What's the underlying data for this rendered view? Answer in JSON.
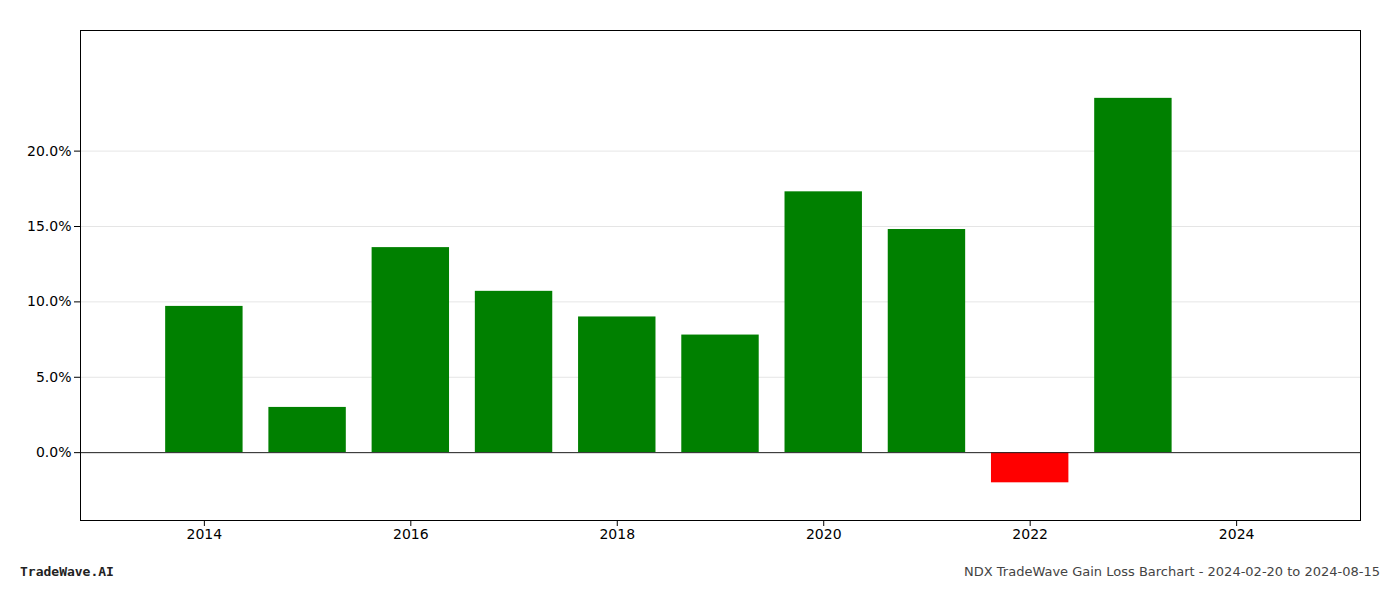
{
  "chart_data": {
    "type": "bar",
    "x": [
      2014,
      2015,
      2016,
      2017,
      2018,
      2019,
      2020,
      2021,
      2022,
      2023
    ],
    "values": [
      0.097,
      0.03,
      0.136,
      0.107,
      0.09,
      0.078,
      0.173,
      0.148,
      -0.02,
      0.235
    ],
    "colors": [
      "#008000",
      "#008000",
      "#008000",
      "#008000",
      "#008000",
      "#008000",
      "#008000",
      "#008000",
      "#ff0000",
      "#008000"
    ],
    "xlim": [
      2012.8,
      2025.2
    ],
    "xticks": [
      2014,
      2016,
      2018,
      2020,
      2022,
      2024
    ],
    "ylim": [
      -0.045,
      0.28
    ],
    "yticks": [
      {
        "value": 0.0,
        "label": "0.0%"
      },
      {
        "value": 0.05,
        "label": "5.0%"
      },
      {
        "value": 0.1,
        "label": "10.0%"
      },
      {
        "value": 0.15,
        "label": "15.0%"
      },
      {
        "value": 0.2,
        "label": "20.0%"
      }
    ],
    "grid": true,
    "annotations": [
      "TradeWave.AI",
      "NDX TradeWave Gain Loss Barchart - 2024-02-20 to 2024-08-15"
    ]
  }
}
